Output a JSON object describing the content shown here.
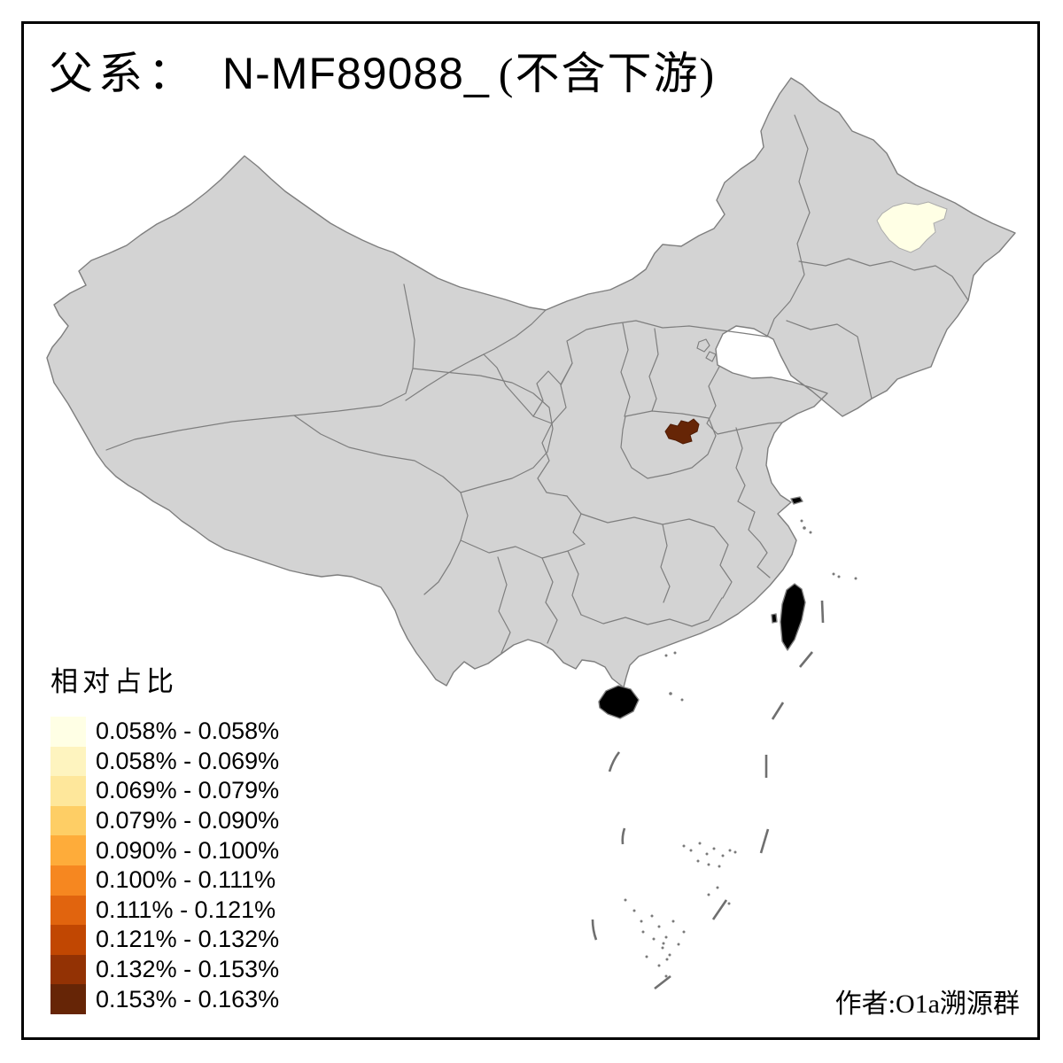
{
  "title": {
    "full": "父系： N-MF89088_ (不含下游)",
    "prefix": "父系：",
    "code": "N-MF89088_",
    "suffix": "(不含下游)"
  },
  "legend": {
    "title": "相对占比",
    "classes": [
      {
        "label": "0.058% - 0.058%",
        "color": "#FFFFE5"
      },
      {
        "label": "0.058% - 0.069%",
        "color": "#FEF4BF"
      },
      {
        "label": "0.069% - 0.079%",
        "color": "#FEE79B"
      },
      {
        "label": "0.079% - 0.090%",
        "color": "#FECE65"
      },
      {
        "label": "0.090% - 0.100%",
        "color": "#FEAC3A"
      },
      {
        "label": "0.100% - 0.111%",
        "color": "#F68720"
      },
      {
        "label": "0.111% - 0.121%",
        "color": "#E1640E"
      },
      {
        "label": "0.121% - 0.132%",
        "color": "#C14702"
      },
      {
        "label": "0.132% - 0.153%",
        "color": "#933204"
      },
      {
        "label": "0.153% - 0.163%",
        "color": "#662506"
      }
    ]
  },
  "author": "作者:O1a溯源群",
  "map": {
    "background": "#FFFFFF",
    "frame_color": "#000000",
    "land_fill": "#D3D3D3",
    "border_color": "#7E7E7E",
    "dash_line_color": "#6F6F6F",
    "regions": [
      {
        "name": "highlight-region-min",
        "class_label": "0.058% - 0.058%",
        "color": "#FFFFE5"
      },
      {
        "name": "highlight-region-max",
        "class_label": "0.153% - 0.163%",
        "color": "#662506"
      }
    ]
  }
}
